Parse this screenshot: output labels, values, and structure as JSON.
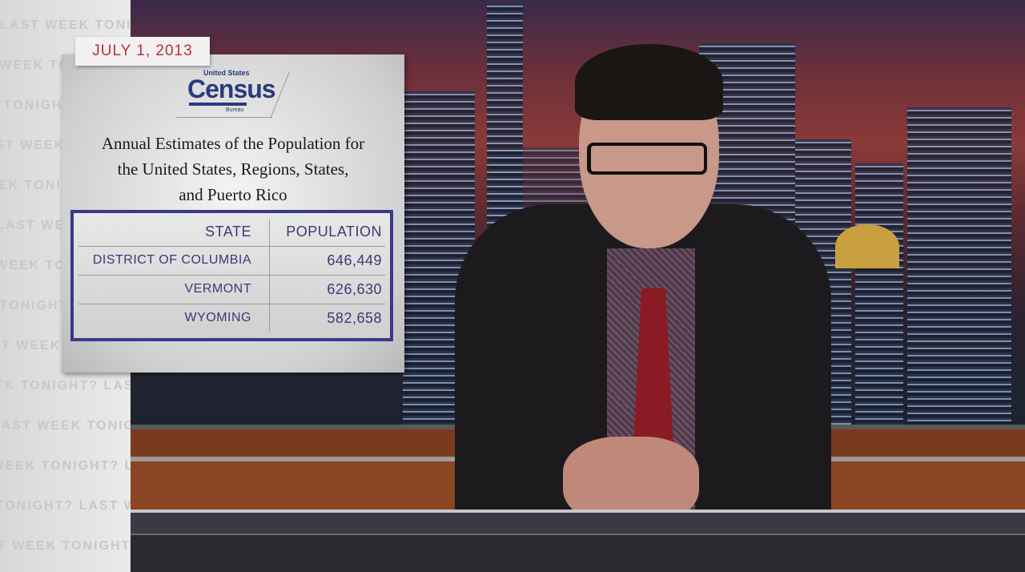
{
  "watermark_text": "LAST WEEK TONIGHT?",
  "graphic": {
    "date": "JULY 1, 2013",
    "logo": {
      "top": "United States",
      "main": "Census",
      "bottom": "Bureau"
    },
    "title_lines": [
      "Annual Estimates of the Population for",
      "the United States, Regions, States,",
      "and Puerto Rico"
    ],
    "table": {
      "headers": [
        "STATE",
        "POPULATION"
      ],
      "rows": [
        [
          "DISTRICT OF COLUMBIA",
          "646,449"
        ],
        [
          "VERMONT",
          "626,630"
        ],
        [
          "WYOMING",
          "582,658"
        ]
      ]
    },
    "colors": {
      "date": "#b83040",
      "table_border": "#3a3a88",
      "table_text": "#3a3a7a"
    }
  }
}
